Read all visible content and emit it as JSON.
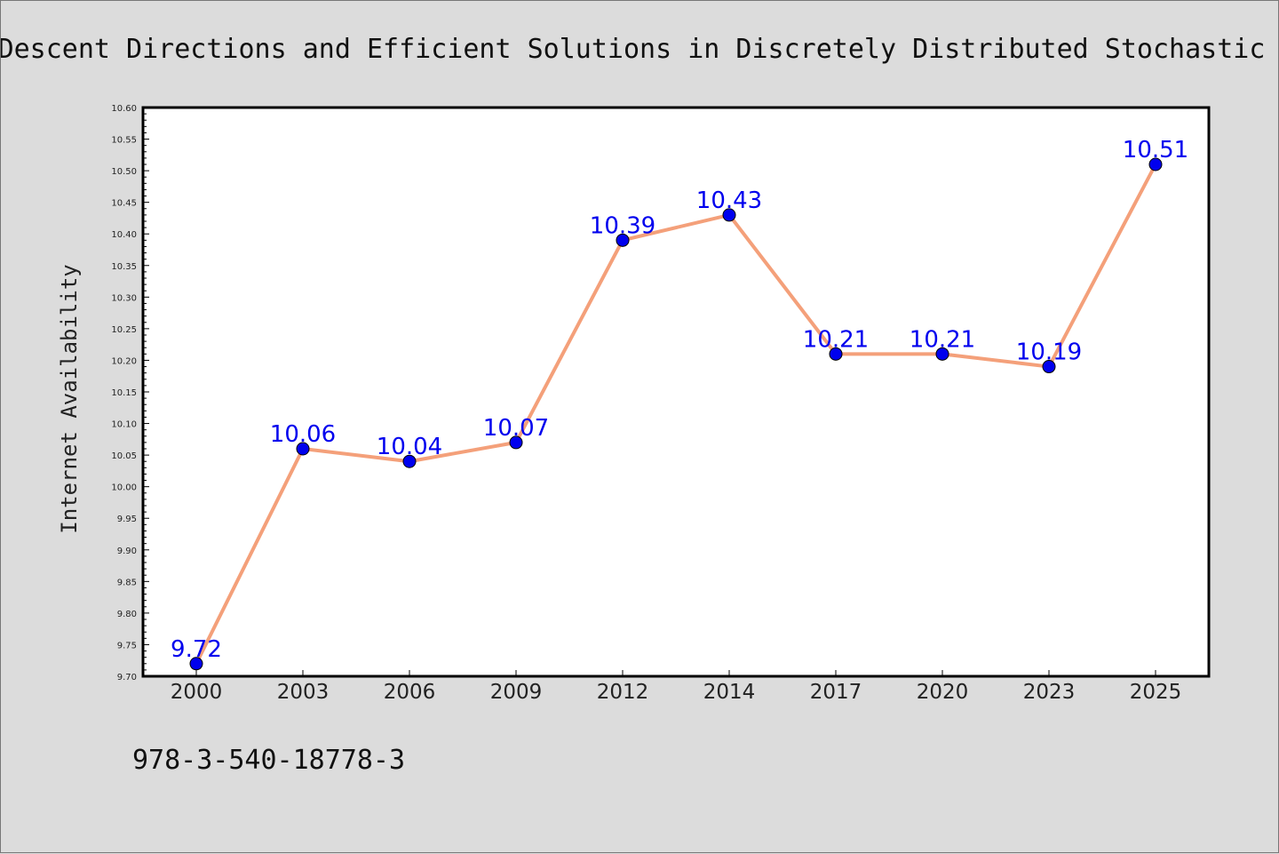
{
  "chart_data": {
    "type": "line",
    "title": "Descent Directions and Efficient Solutions in Discretely Distributed Stochastic",
    "xlabel": "",
    "ylabel": "Internet Availability",
    "categories": [
      "2000",
      "2003",
      "2006",
      "2009",
      "2012",
      "2014",
      "2017",
      "2020",
      "2023",
      "2025"
    ],
    "series": [
      {
        "values": [
          9.72,
          10.06,
          10.04,
          10.07,
          10.39,
          10.43,
          10.21,
          10.21,
          10.19,
          10.51
        ]
      }
    ],
    "data_labels": [
      "9.72",
      "10.06",
      "10.04",
      "10.07",
      "10.39",
      "10.43",
      "10.21",
      "10.21",
      "10.19",
      "10.51"
    ],
    "ylim": [
      9.7,
      10.6
    ],
    "yticks": [
      "9.70",
      "9.75",
      "9.80",
      "9.85",
      "9.90",
      "9.95",
      "10.00",
      "10.05",
      "10.10",
      "10.15",
      "10.20",
      "10.25",
      "10.30",
      "10.35",
      "10.40",
      "10.45",
      "10.50",
      "10.55",
      "10.60"
    ],
    "grid": false,
    "legend": "none",
    "colors": {
      "line": "#f4a07a",
      "marker": "#0000ee",
      "label": "#0000ee",
      "background": "#dcdcdc",
      "plot_bg": "#ffffff"
    }
  },
  "footer_text": "978-3-540-18778-3"
}
